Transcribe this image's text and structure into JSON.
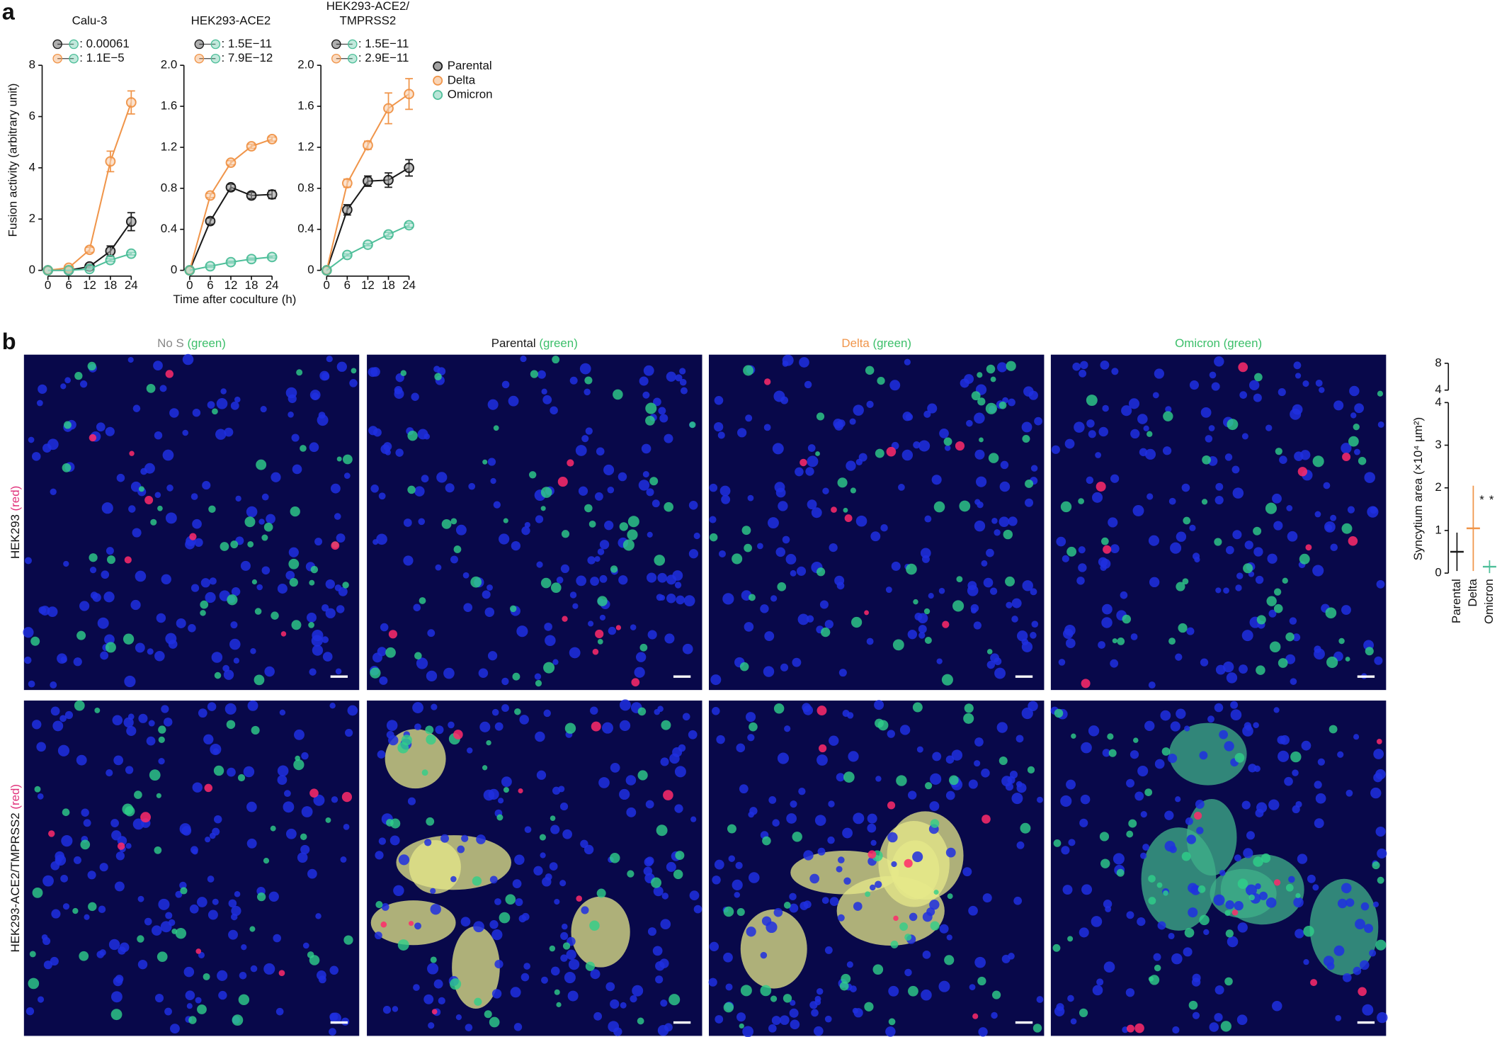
{
  "panel_labels": [
    "a",
    "b"
  ],
  "chart_data": [
    {
      "type": "line",
      "title": "Calu-3",
      "y_label": "Fusion activity (arbitrary unit)",
      "x": [
        0,
        6,
        12,
        18,
        24
      ],
      "xlim": [
        0,
        24
      ],
      "xticks": [
        0,
        6,
        12,
        18,
        24
      ],
      "ylim": [
        0,
        8
      ],
      "yticks": [
        0,
        2,
        4,
        6,
        8
      ],
      "annotations": [
        ": 0.00061",
        ": 1.1E−5"
      ],
      "annotation_color": "#e8303a",
      "series": [
        {
          "name": "Parental",
          "color": "#1a1a1a",
          "values": [
            0,
            0,
            0.15,
            0.75,
            1.9
          ],
          "errors": [
            0,
            0,
            0.05,
            0.2,
            0.35
          ]
        },
        {
          "name": "Delta",
          "color": "#f0954a",
          "values": [
            0,
            0.1,
            0.8,
            4.25,
            6.55
          ],
          "errors": [
            0,
            0.05,
            0.1,
            0.4,
            0.45
          ]
        },
        {
          "name": "Omicron",
          "color": "#4fbf9a",
          "values": [
            0,
            0,
            0.05,
            0.4,
            0.65
          ],
          "errors": [
            0,
            0,
            0,
            0.05,
            0.05
          ]
        }
      ]
    },
    {
      "type": "line",
      "title": "HEK293-ACE2",
      "x_label": "Time after coculture (h)",
      "x": [
        0,
        6,
        12,
        18,
        24
      ],
      "xlim": [
        0,
        24
      ],
      "xticks": [
        0,
        6,
        12,
        18,
        24
      ],
      "ylim": [
        0,
        2
      ],
      "yticks": [
        0,
        0.4,
        0.8,
        1.2,
        1.6,
        {
          "value": 2,
          "label": "2.0"
        }
      ],
      "annotations": [
        ": 1.5E−11",
        ": 7.9E−12"
      ],
      "annotation_color": "#e8303a",
      "series": [
        {
          "name": "Parental",
          "color": "#1a1a1a",
          "values": [
            0,
            0.48,
            0.81,
            0.73,
            0.74
          ],
          "errors": [
            0,
            0.03,
            0.03,
            0.03,
            0.04
          ]
        },
        {
          "name": "Delta",
          "color": "#f0954a",
          "values": [
            0,
            0.73,
            1.05,
            1.21,
            1.28
          ],
          "errors": [
            0,
            0.02,
            0.02,
            0.02,
            0.02
          ]
        },
        {
          "name": "Omicron",
          "color": "#4fbf9a",
          "values": [
            0,
            0.04,
            0.08,
            0.11,
            0.13
          ],
          "errors": [
            0,
            0.01,
            0.01,
            0.01,
            0.01
          ]
        }
      ]
    },
    {
      "type": "line",
      "title": [
        "HEK293-ACE2/",
        "TMPRSS2"
      ],
      "legend": "right",
      "x": [
        0,
        6,
        12,
        18,
        24
      ],
      "xlim": [
        0,
        24
      ],
      "xticks": [
        0,
        6,
        12,
        18,
        24
      ],
      "ylim": [
        0,
        2
      ],
      "yticks": [
        0,
        0.4,
        0.8,
        1.2,
        1.6,
        {
          "value": 2,
          "label": "2.0"
        }
      ],
      "annotations": [
        ": 1.5E−11",
        ": 2.9E−11"
      ],
      "annotation_color": "#e8303a",
      "series": [
        {
          "name": "Parental",
          "color": "#1a1a1a",
          "values": [
            0,
            0.59,
            0.87,
            0.88,
            1.0
          ],
          "errors": [
            0,
            0.05,
            0.05,
            0.07,
            0.08
          ]
        },
        {
          "name": "Delta",
          "color": "#f0954a",
          "values": [
            0,
            0.85,
            1.22,
            1.58,
            1.72
          ],
          "errors": [
            0,
            0.04,
            0.04,
            0.15,
            0.15
          ]
        },
        {
          "name": "Omicron",
          "color": "#4fbf9a",
          "values": [
            0,
            0.15,
            0.25,
            0.35,
            0.44
          ],
          "errors": [
            0,
            0.01,
            0.01,
            0.02,
            0.02
          ]
        }
      ]
    },
    {
      "type": "strip",
      "y_label": "Syncytium area (×10⁴ µm²)",
      "categories": [
        "Parental",
        "Delta",
        "Omicron"
      ],
      "colors": [
        "#1a1a1a",
        "#f0954a",
        "#4fbf9a"
      ],
      "values": [
        0.5,
        1.05,
        0.15
      ],
      "errors": [
        0.45,
        1.0,
        0.15
      ],
      "ylim": [
        0,
        4
      ],
      "yticks": [
        0,
        1,
        2,
        3,
        4
      ],
      "y_upper_lim": [
        4,
        8
      ],
      "y_upper_ticks": [
        4,
        8
      ],
      "annotations": [
        {
          "text": "*",
          "color": "#1a1a1a"
        },
        {
          "text": "*",
          "color": "#f0954a"
        }
      ]
    }
  ],
  "images": {
    "columns": [
      {
        "name": "No S",
        "name_color": "#888888",
        "channel": "(green)",
        "channel_color": "#3cbf6a"
      },
      {
        "name": "Parental",
        "name_color": "#1a1a1a",
        "channel": "(green)",
        "channel_color": "#3cbf6a"
      },
      {
        "name": "Delta",
        "name_color": "#f0954a",
        "channel": "(green)",
        "channel_color": "#3cbf6a"
      },
      {
        "name": "Omicron",
        "name_color": "#3cbf6a",
        "channel": "(green)",
        "channel_color": "#3cbf6a"
      }
    ],
    "rows": [
      {
        "name": "HEK293",
        "channel": "(red)",
        "channel_color": "#e0307a"
      },
      {
        "name": "HEK293-ACE2/TMPRSS2",
        "channel": "(red)",
        "channel_color": "#e0307a"
      }
    ]
  }
}
